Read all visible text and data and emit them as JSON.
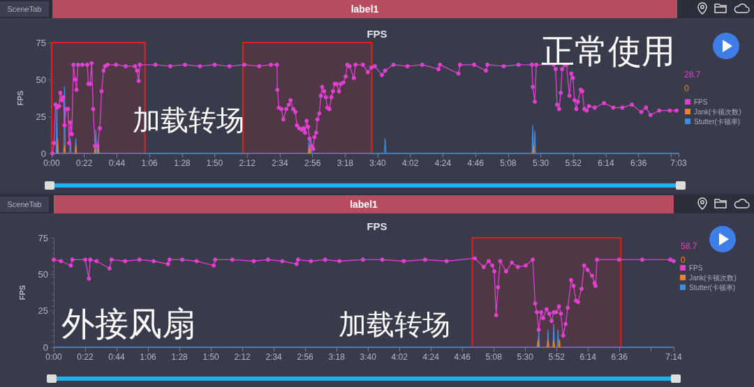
{
  "chart_data": [
    {
      "type": "line",
      "title": "FPS",
      "ylabel": "FPS",
      "annotations": [
        "SceneTab",
        "label1",
        "加载转场",
        "正常使用",
        "28.7",
        "0"
      ],
      "xlim": [
        0,
        423
      ],
      "ylim": [
        0,
        75
      ],
      "yticks": [
        0,
        25,
        50,
        75
      ],
      "xticks": [
        {
          "value": 0,
          "label": "0:00"
        },
        {
          "value": 22,
          "label": "0:22"
        },
        {
          "value": 44,
          "label": "0:44"
        },
        {
          "value": 66,
          "label": "1:06"
        },
        {
          "value": 88,
          "label": "1:28"
        },
        {
          "value": 110,
          "label": "1:50"
        },
        {
          "value": 132,
          "label": "2:12"
        },
        {
          "value": 154,
          "label": "2:34"
        },
        {
          "value": 176,
          "label": "2:56"
        },
        {
          "value": 198,
          "label": "3:18"
        },
        {
          "value": 220,
          "label": "3:40"
        },
        {
          "value": 242,
          "label": "4:02"
        },
        {
          "value": 264,
          "label": "4:24"
        },
        {
          "value": 286,
          "label": "4:46"
        },
        {
          "value": 308,
          "label": "5:08"
        },
        {
          "value": 330,
          "label": "5:30"
        },
        {
          "value": 352,
          "label": "5:52"
        },
        {
          "value": 374,
          "label": "6:14"
        },
        {
          "value": 396,
          "label": "6:36"
        },
        {
          "value": 418,
          "label": null
        },
        {
          "value": 423,
          "label": "7:03"
        }
      ],
      "legend": "right",
      "bands": [
        {
          "axis": "x",
          "from": 0,
          "to": 63,
          "color": "#e02020"
        },
        {
          "axis": "x",
          "from": 129,
          "to": 216,
          "color": "#e02020"
        }
      ],
      "series": [
        {
          "name": "FPS",
          "color": "#e040d0",
          "marker": "circle",
          "x": [
            0.5,
            1.6,
            2.6,
            3.7,
            5,
            5.8,
            6.8,
            7.8,
            8.7,
            9.7,
            11,
            11.8,
            12.6,
            13.6,
            14.7,
            15.9,
            16.8,
            17.8,
            20.7,
            24,
            24.8,
            26,
            27,
            28,
            29.3,
            30.9,
            32.5,
            33.7,
            35,
            36,
            37.7,
            43.4,
            50,
            56.3,
            57.6,
            58.7,
            59.5,
            70,
            80,
            90,
            100,
            110,
            120,
            130,
            140,
            148,
            152,
            152.3,
            153.3,
            155,
            156.3,
            158.3,
            160,
            161.2,
            163,
            164.4,
            165.5,
            167,
            168.8,
            170,
            171,
            172,
            173,
            174,
            175.4,
            176.5,
            177.3,
            178.5,
            179.3,
            180.6,
            181.7,
            182.5,
            183.8,
            185,
            186,
            187.4,
            188.7,
            189.8,
            191,
            192.2,
            193.9,
            195,
            196.8,
            198.4,
            199.5,
            201,
            203.9,
            205,
            210,
            213.3,
            215.7,
            218,
            222.8,
            225,
            230.6,
            240,
            250,
            261,
            262,
            274.5,
            275.5,
            285,
            293,
            294,
            305,
            315,
            324,
            324.6,
            326,
            327,
            338.7,
            340,
            341,
            342.4,
            343.5,
            344.4,
            346,
            347.4,
            349.3,
            350.6,
            351.7,
            352.8,
            354,
            355,
            357,
            358,
            359.4,
            361,
            362.5,
            366.4,
            372.7,
            379,
            385,
            391.5,
            397.8,
            401,
            404,
            410,
            417,
            421.6
          ],
          "values": [
            0,
            7,
            33,
            31,
            32,
            41,
            36,
            38,
            19,
            30,
            30,
            7,
            21,
            13,
            60,
            50,
            43,
            60,
            60,
            60,
            47,
            47,
            61,
            30,
            5,
            5,
            17,
            42,
            56,
            59,
            60,
            60,
            59,
            59,
            56,
            49,
            60,
            60,
            59,
            60,
            59,
            60,
            59,
            60,
            59,
            60,
            60,
            43,
            31,
            30,
            23,
            30,
            33,
            36,
            30,
            28,
            19,
            17,
            16,
            17,
            14,
            22,
            18,
            10,
            5,
            3,
            11,
            14,
            23,
            27,
            39,
            45,
            42,
            38,
            31,
            30,
            38,
            42,
            47,
            47,
            42,
            47,
            48,
            52,
            60,
            59,
            51,
            60,
            60,
            55,
            58,
            59,
            53,
            56,
            60,
            59,
            60,
            57,
            60,
            54,
            60,
            60,
            56,
            60,
            59,
            60,
            60,
            45,
            35,
            60,
            60,
            57,
            33,
            30,
            41,
            57,
            60,
            60,
            39,
            54,
            51,
            36,
            30,
            35,
            43,
            42,
            30,
            29,
            32,
            31,
            34,
            31,
            31,
            33,
            28,
            31,
            26,
            29,
            29,
            29
          ]
        },
        {
          "name": "Jank(卡顿次数)",
          "color": "#f08020",
          "marker": "none",
          "x": [
            3.5,
            4,
            4.5,
            6,
            8.2,
            8.7,
            9.2,
            12,
            15.8,
            16.3,
            16.8,
            20,
            28.8,
            29.3,
            29.8,
            30.4,
            30.9,
            31.4,
            31.9,
            100,
            173.6,
            174.1,
            174.6,
            250,
            324.6,
            325.1,
            325.6
          ],
          "values": [
            0,
            10,
            0,
            null,
            0,
            5,
            0,
            null,
            0,
            5,
            0,
            null,
            0,
            5,
            0,
            null,
            0,
            5,
            0,
            null,
            0,
            5,
            0,
            null,
            0,
            5,
            0
          ]
        },
        {
          "name": "Stutter(卡顿率)",
          "color": "#3a8ee6",
          "marker": "none",
          "x": [
            0,
            3,
            3.5,
            4,
            8.2,
            8.7,
            9.2,
            12.1,
            12.6,
            13.1,
            15.8,
            16.3,
            16.8,
            29.3,
            29.8,
            30.3,
            30.9,
            31.4,
            31.9,
            173.1,
            173.6,
            174.1,
            174.5,
            175,
            175.5,
            224.5,
            225,
            225.5,
            324.1,
            324.6,
            325.1,
            325.5,
            326,
            326.5,
            423
          ],
          "values": [
            0,
            0,
            32,
            0,
            0,
            45,
            0,
            0,
            10,
            0,
            0,
            10,
            0,
            0,
            16,
            0,
            0,
            9,
            0,
            0,
            9,
            0,
            0,
            9,
            0,
            0,
            10,
            0,
            0,
            19,
            0,
            0,
            15,
            0,
            0
          ]
        }
      ]
    },
    {
      "type": "line",
      "title": "FPS",
      "ylabel": "FPS",
      "annotations": [
        "SceneTab",
        "label1",
        "外接风扇",
        "加载转场",
        "58.7",
        "0"
      ],
      "xlim": [
        0,
        434
      ],
      "ylim": [
        0,
        75
      ],
      "yticks": [
        0,
        25,
        50,
        75
      ],
      "xticks": [
        {
          "value": 0,
          "label": "0:00"
        },
        {
          "value": 22,
          "label": "0:22"
        },
        {
          "value": 44,
          "label": "0:44"
        },
        {
          "value": 66,
          "label": "1:06"
        },
        {
          "value": 88,
          "label": "1:28"
        },
        {
          "value": 110,
          "label": "1:50"
        },
        {
          "value": 132,
          "label": "2:12"
        },
        {
          "value": 154,
          "label": "2:34"
        },
        {
          "value": 176,
          "label": "2:56"
        },
        {
          "value": 198,
          "label": "3:18"
        },
        {
          "value": 220,
          "label": "3:40"
        },
        {
          "value": 242,
          "label": "4:02"
        },
        {
          "value": 264,
          "label": "4:24"
        },
        {
          "value": 286,
          "label": "4:46"
        },
        {
          "value": 308,
          "label": "5:08"
        },
        {
          "value": 330,
          "label": "5:30"
        },
        {
          "value": 352,
          "label": "5:52"
        },
        {
          "value": 374,
          "label": "6:14"
        },
        {
          "value": 396,
          "label": "6:36"
        },
        {
          "value": 418,
          "label": null
        },
        {
          "value": 434,
          "label": "7:14"
        }
      ],
      "legend": "right",
      "bands": [
        {
          "axis": "x",
          "from": 293,
          "to": 397,
          "color": "#e02020"
        }
      ],
      "series": [
        {
          "name": "FPS",
          "color": "#e040d0",
          "marker": "circle",
          "x": [
            0,
            5,
            12,
            13,
            22,
            24.6,
            25.5,
            30,
            39,
            40.5,
            50,
            60,
            70,
            80,
            81,
            90,
            100,
            112,
            113,
            125,
            140,
            150,
            160,
            170,
            171,
            180,
            190,
            200,
            216.5,
            230,
            245,
            260,
            275,
            294.7,
            301,
            304.5,
            307,
            308.4,
            309.7,
            311,
            312.6,
            316.7,
            320.7,
            324.9,
            330.4,
            335.3,
            337,
            338.2,
            339.5,
            341.2,
            342.6,
            345,
            346.9,
            348.5,
            350,
            351.7,
            353.7,
            355,
            356.6,
            358.3,
            359.8,
            362.2,
            363.9,
            365.6,
            367,
            369.5,
            371.3,
            373.7,
            376.8,
            378.6,
            379.3,
            380.3,
            395.7,
            412,
            431.6,
            434
          ],
          "values": [
            60,
            59,
            56,
            60,
            60,
            47,
            60,
            59,
            54,
            60,
            59,
            60,
            59,
            57,
            60,
            60,
            59,
            56,
            60,
            60,
            59,
            60,
            59,
            57,
            60,
            59,
            60,
            59,
            60,
            60,
            59,
            60,
            59,
            61,
            55,
            59,
            56,
            52,
            22,
            41,
            59,
            52,
            58,
            55,
            56,
            60,
            30,
            24,
            12,
            24,
            20,
            26,
            23,
            18,
            24,
            24,
            28,
            23,
            8,
            16,
            27,
            46,
            42,
            32,
            31,
            40,
            56,
            53,
            49,
            44,
            42,
            60,
            60,
            60,
            60,
            59
          ]
        },
        {
          "name": "Jank(卡顿次数)",
          "color": "#f08020",
          "marker": "none",
          "x": [
            338.5,
            339,
            339.5,
            342,
            345.5,
            346,
            346.5,
            348,
            349.5,
            350,
            350.5,
            352,
            353.5,
            354,
            354.5
          ],
          "values": [
            0,
            5,
            0,
            null,
            0,
            5,
            0,
            null,
            0,
            5,
            0,
            null,
            0,
            5,
            0
          ]
        },
        {
          "name": "Stutter(卡顿率)",
          "color": "#3a8ee6",
          "marker": "none",
          "x": [
            0,
            339,
            339.5,
            340,
            345.5,
            346,
            346.5,
            349.5,
            350,
            350.5,
            352.5,
            353,
            353.5,
            434
          ],
          "values": [
            0,
            0,
            12,
            0,
            0,
            12,
            0,
            0,
            16,
            0,
            0,
            12,
            0,
            0
          ]
        }
      ]
    }
  ]
}
